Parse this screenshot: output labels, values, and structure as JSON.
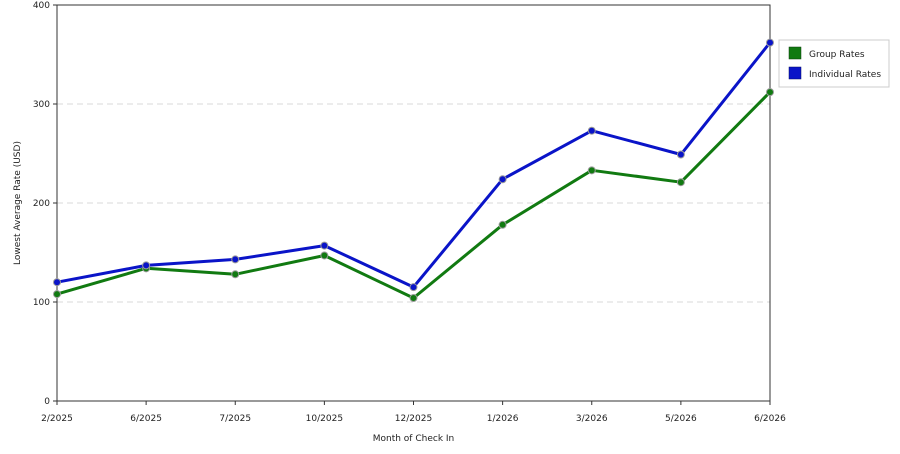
{
  "chart_data": {
    "type": "line",
    "xlabel": "Month of Check In",
    "ylabel": "Lowest Average Rate (USD)",
    "ylim": [
      0,
      400
    ],
    "yticks": [
      0,
      100,
      200,
      300,
      400
    ],
    "grid": true,
    "legend_position": "right",
    "categories": [
      "2/2025",
      "6/2025",
      "7/2025",
      "10/2025",
      "12/2025",
      "1/2026",
      "3/2026",
      "5/2026",
      "6/2026"
    ],
    "series": [
      {
        "name": "Group Rates",
        "color": "#117a11",
        "values": [
          108,
          134,
          128,
          147,
          104,
          178,
          233,
          221,
          312
        ]
      },
      {
        "name": "Individual Rates",
        "color": "#0a14c8",
        "values": [
          120,
          137,
          143,
          157,
          115,
          224,
          273,
          249,
          362
        ]
      }
    ]
  }
}
